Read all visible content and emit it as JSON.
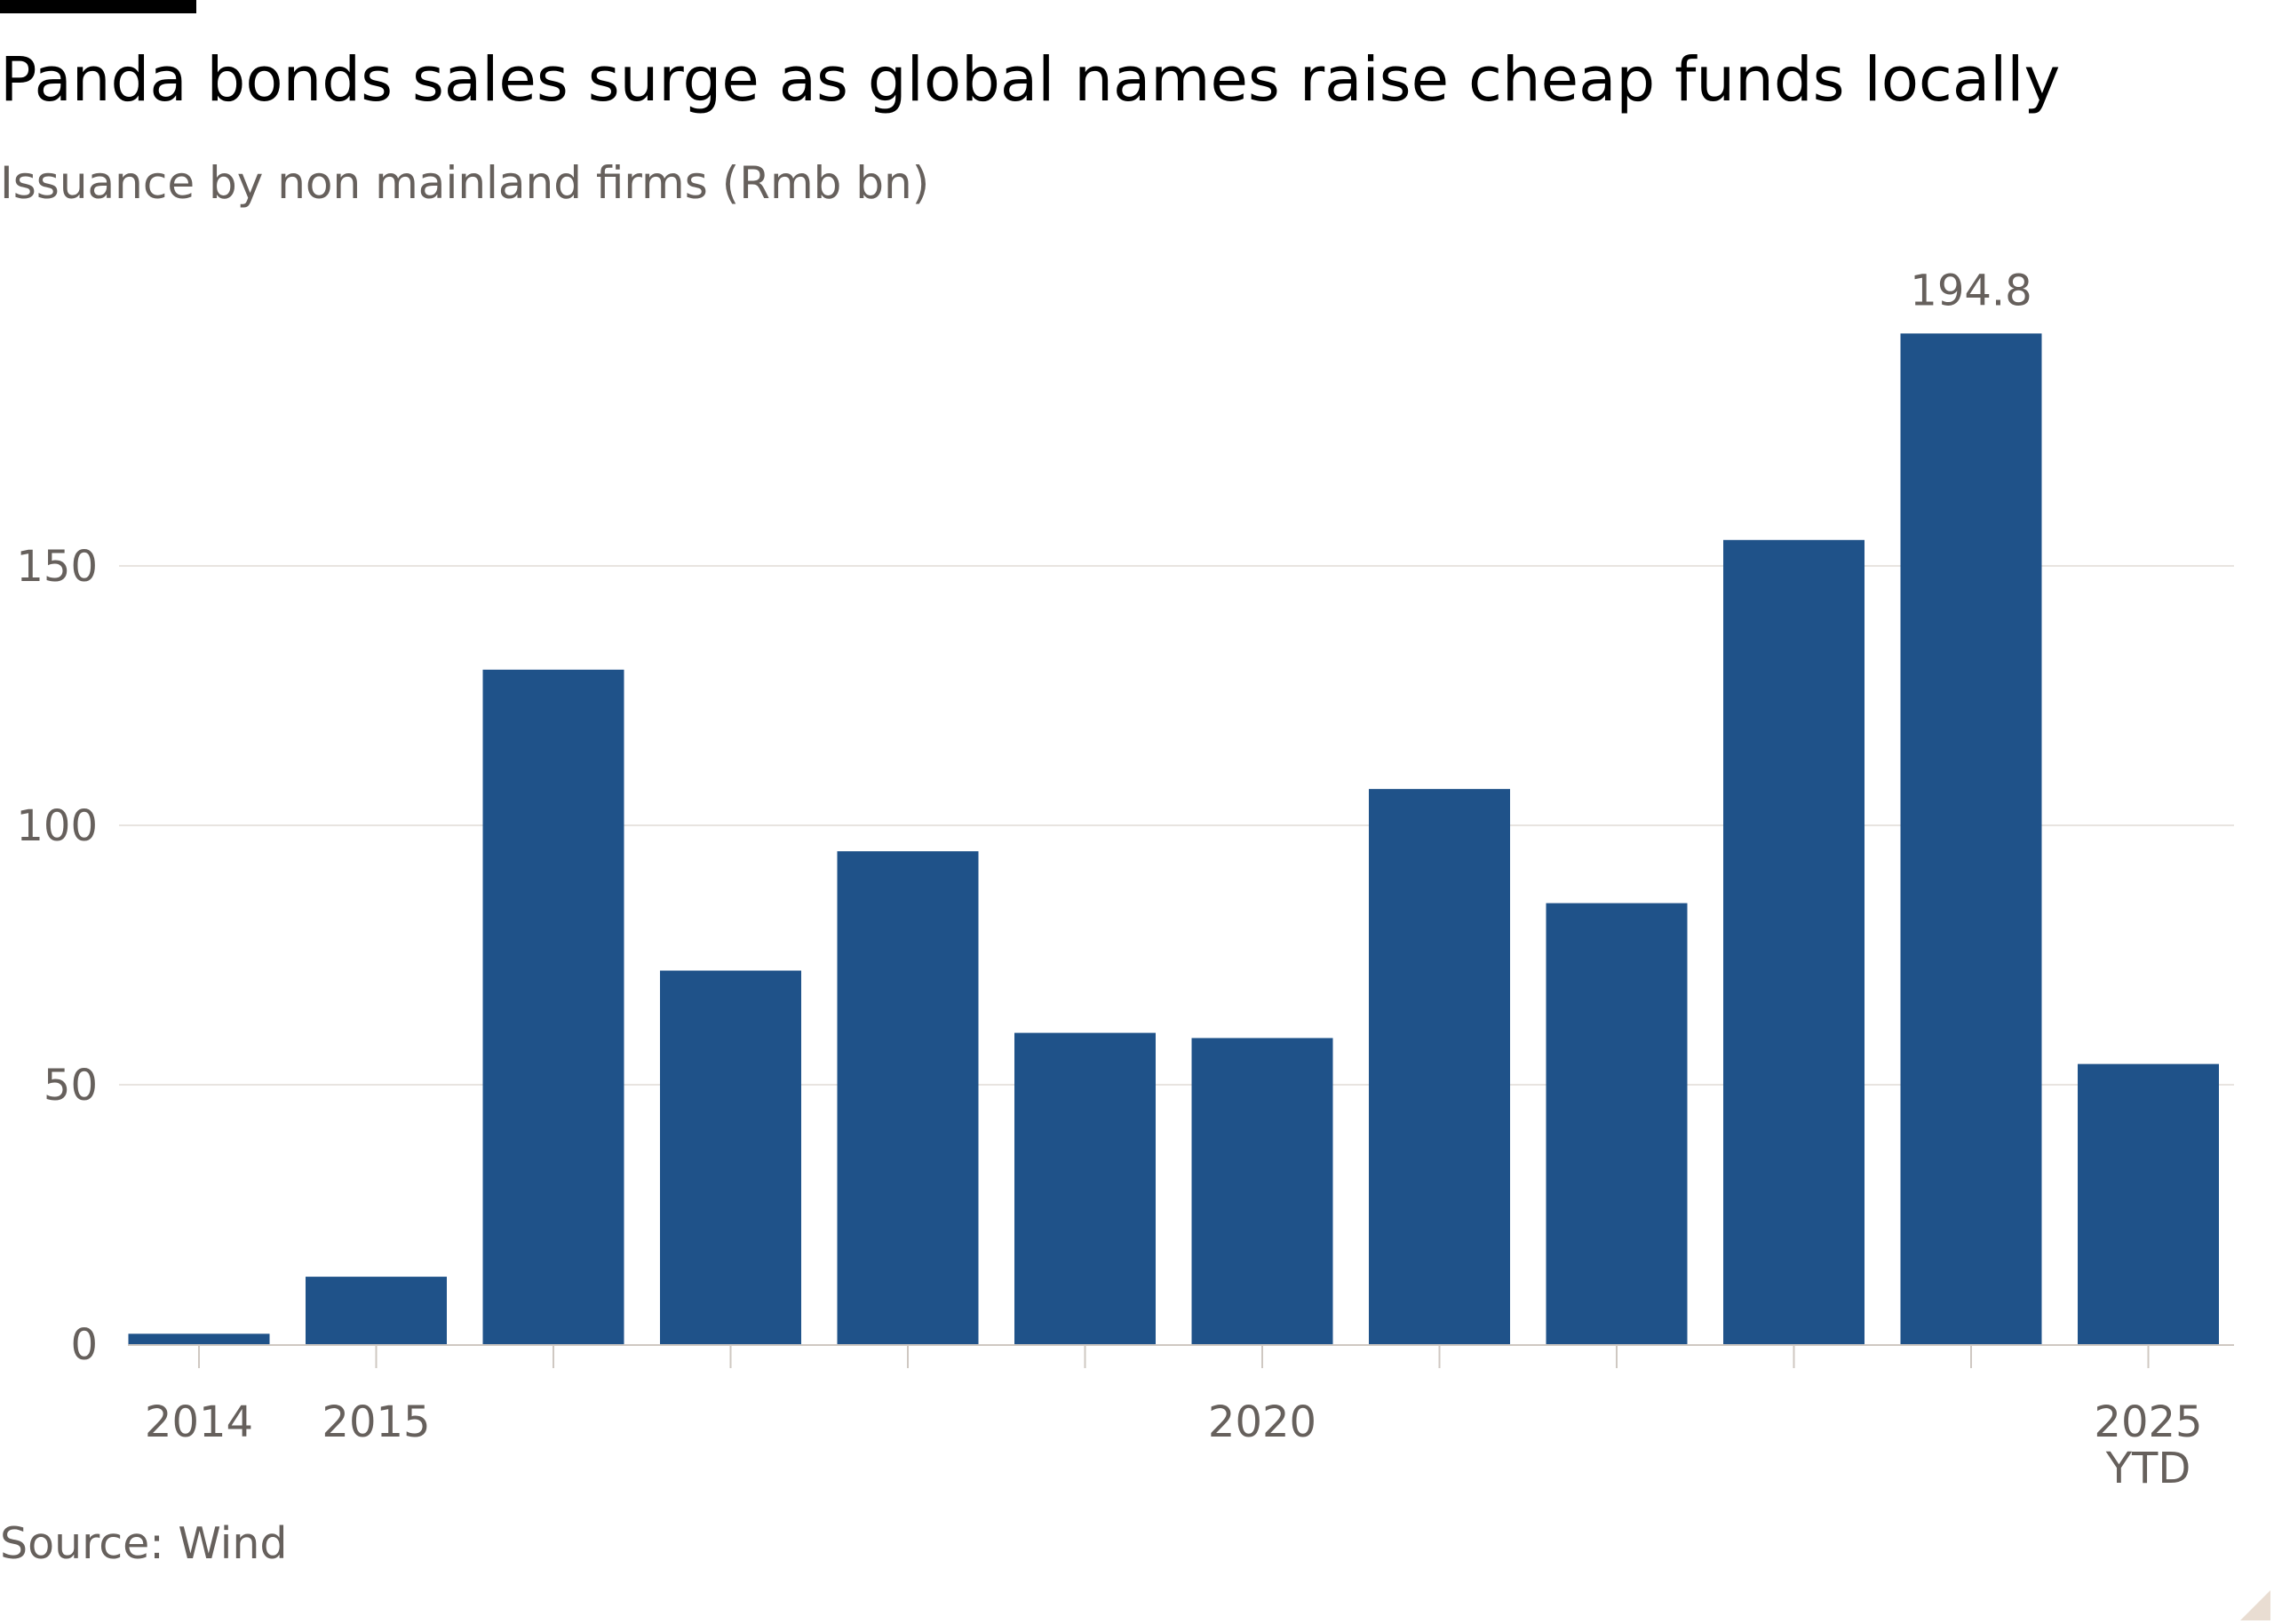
{
  "chart_data": {
    "type": "bar",
    "title": "Panda bonds sales surge as global names raise cheap funds locally",
    "subtitle": "Issuance by non mainland firms (Rmb bn)",
    "source": "Source: Wind",
    "categories": [
      "2014",
      "2015",
      "2016",
      "2017",
      "2018",
      "2019",
      "2020",
      "2021",
      "2022",
      "2023",
      "2024",
      "2025 YTD"
    ],
    "x_tick_labels": [
      {
        "index": 0,
        "lines": [
          "2014"
        ]
      },
      {
        "index": 1,
        "lines": [
          "2015"
        ]
      },
      {
        "index": 6,
        "lines": [
          "2020"
        ]
      },
      {
        "index": 11,
        "lines": [
          "2025",
          "YTD"
        ]
      }
    ],
    "values": [
      2,
      13,
      130,
      72,
      95,
      60,
      59,
      107,
      85,
      155,
      194.8,
      54
    ],
    "data_labels": [
      {
        "index": 10,
        "text": "194.8"
      }
    ],
    "ylim": [
      0,
      200
    ],
    "yticks": [
      0,
      50,
      100,
      150
    ],
    "grid": true,
    "bar_color": "#1f5289",
    "xlabel": "",
    "ylabel": ""
  }
}
